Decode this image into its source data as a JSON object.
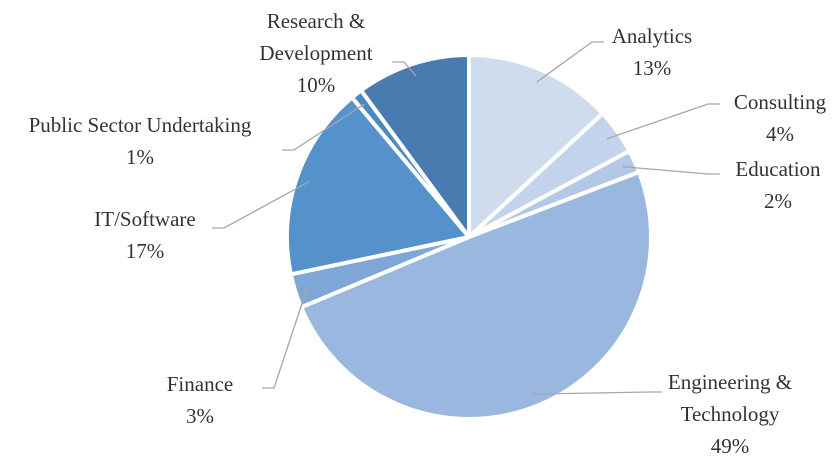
{
  "chart_data": {
    "type": "pie",
    "categories": [
      "Analytics",
      "Consulting",
      "Education",
      "Engineering & Technology",
      "Finance",
      "IT/Software",
      "Public Sector Undertaking",
      "Research & Development"
    ],
    "values": [
      13,
      4,
      2,
      49,
      3,
      17,
      1,
      10
    ],
    "value_labels": [
      "13%",
      "4%",
      "2%",
      "49%",
      "3%",
      "17%",
      "1%",
      "10%"
    ],
    "colors": [
      "#cfdcee",
      "#c3d3eb",
      "#b3c8e6",
      "#9ab8df",
      "#7ea6d6",
      "#5592cb",
      "#4d88c2",
      "#4a7bb0"
    ]
  }
}
